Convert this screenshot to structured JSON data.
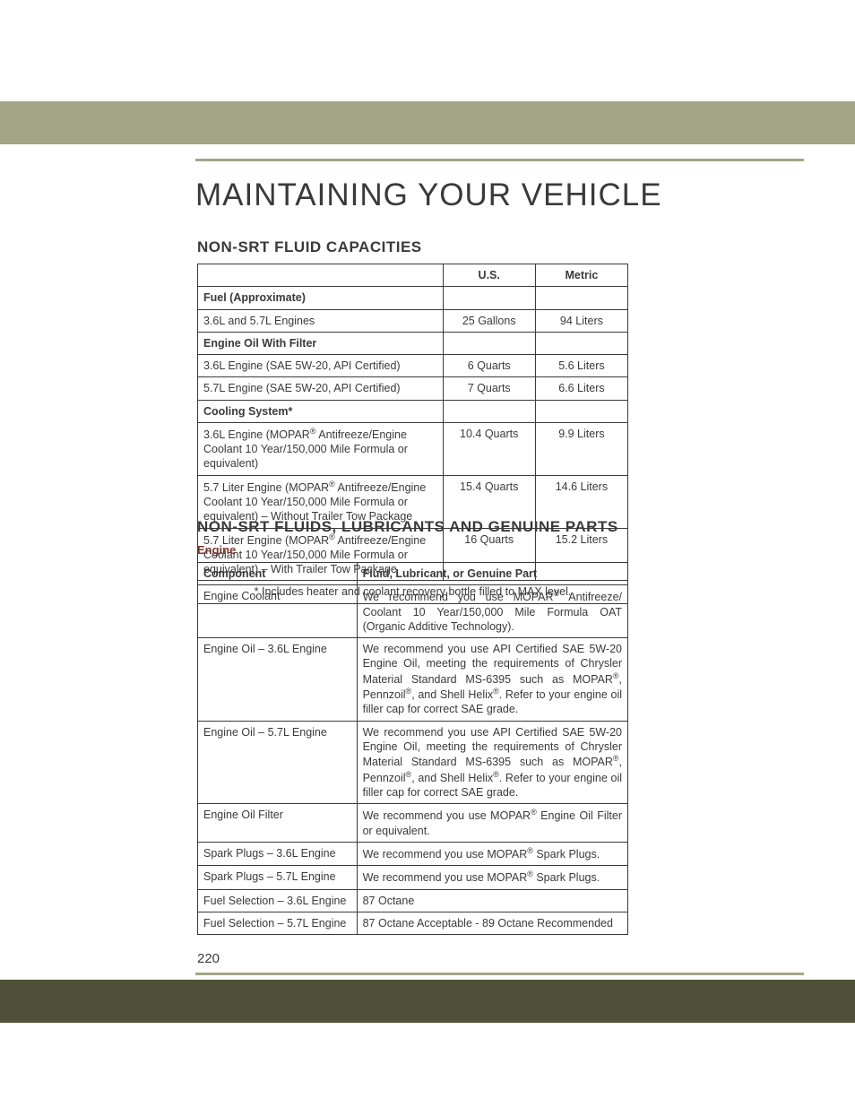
{
  "page": {
    "title": "MAINTAINING YOUR VEHICLE",
    "number": "220"
  },
  "colors": {
    "topbar": "#a3a587",
    "rule": "#a3a587",
    "botbar": "#515139",
    "text": "#3a3a3a",
    "subhead": "#7a3b2e",
    "border": "#3a3a3a",
    "bg": "#ffffff"
  },
  "capacities": {
    "heading": "NON-SRT FLUID CAPACITIES",
    "columns": [
      "",
      "U.S.",
      "Metric"
    ],
    "rows": [
      {
        "type": "header",
        "label": "Fuel (Approximate)"
      },
      {
        "type": "data",
        "label": "3.6L and 5.7L Engines",
        "us": "25 Gallons",
        "metric": "94 Liters"
      },
      {
        "type": "header",
        "label": "Engine Oil With Filter"
      },
      {
        "type": "data",
        "label": "3.6L Engine (SAE 5W-20, API Certified)",
        "us": "6 Quarts",
        "metric": "5.6 Liters"
      },
      {
        "type": "data",
        "label": "5.7L Engine (SAE 5W-20, API Certified)",
        "us": "7 Quarts",
        "metric": "6.6 Liters"
      },
      {
        "type": "header",
        "label": "Cooling System*"
      },
      {
        "type": "data",
        "label": "3.6L Engine (MOPAR® Antifreeze/Engine Coolant 10 Year/150,000 Mile Formula or equivalent)",
        "us": "10.4 Quarts",
        "metric": "9.9 Liters"
      },
      {
        "type": "data",
        "label": "5.7 Liter Engine (MOPAR® Antifreeze/Engine Coolant 10 Year/150,000 Mile Formula or equivalent) – Without Trailer Tow Package",
        "us": "15.4 Quarts",
        "metric": "14.6 Liters"
      },
      {
        "type": "data",
        "label": "5.7 Liter Engine (MOPAR® Antifreeze/Engine Coolant 10 Year/150,000 Mile Formula or equivalent) – With Trailer Tow Package",
        "us": "16 Quarts",
        "metric": "15.2 Liters"
      }
    ],
    "footnote": "* Includes heater and coolant recovery bottle filled to MAX level."
  },
  "fluids": {
    "heading": "NON-SRT FLUIDS, LUBRICANTS AND GENUINE PARTS",
    "subheading": "Engine",
    "columns": [
      "Component",
      "Fluid, Lubricant, or Genuine Part"
    ],
    "rows": [
      {
        "component": "Engine Coolant",
        "part": "We recommend you use MOPAR® Antifreeze/ Coolant 10 Year/150,000 Mile Formula OAT (Organic Additive Technology).",
        "justify": true
      },
      {
        "component": "Engine Oil – 3.6L Engine",
        "part": "We recommend you use API Certified SAE 5W-20 Engine Oil, meeting the requirements of Chrysler Material Standard MS-6395 such as MOPAR®, Pennzoil®, and Shell Helix®. Refer to your engine oil filler cap for correct SAE grade.",
        "justify": true
      },
      {
        "component": "Engine Oil – 5.7L Engine",
        "part": "We recommend you use API Certified SAE 5W-20 Engine Oil, meeting the requirements of Chrysler Material Standard MS-6395 such as MOPAR®, Pennzoil®, and Shell Helix®. Refer to your engine oil filler cap for correct SAE grade.",
        "justify": true
      },
      {
        "component": "Engine Oil Filter",
        "part": "We recommend you use MOPAR® Engine Oil Filter or equivalent.",
        "justify": true
      },
      {
        "component": "Spark Plugs – 3.6L Engine",
        "part": "We recommend you use MOPAR® Spark Plugs."
      },
      {
        "component": "Spark Plugs – 5.7L Engine",
        "part": "We recommend you use MOPAR® Spark Plugs."
      },
      {
        "component": "Fuel Selection – 3.6L Engine",
        "part": "87 Octane"
      },
      {
        "component": "Fuel Selection – 5.7L Engine",
        "part": "87 Octane Acceptable - 89 Octane Recommended",
        "justify": true
      }
    ]
  }
}
